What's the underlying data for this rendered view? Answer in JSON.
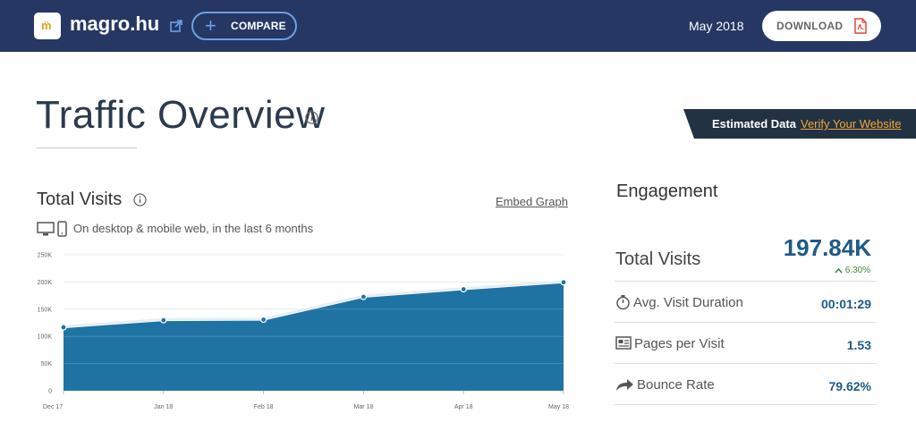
{
  "header": {
    "logo_text": "m̈",
    "site": "magro.hu",
    "compare_label": "COMPARE",
    "date": "May 2018",
    "download_label": "DOWNLOAD"
  },
  "overview": {
    "title": "Traffic Overview",
    "estimated_label": "Estimated Data",
    "verify_label": "Verify Your Website"
  },
  "visits": {
    "title": "Total Visits",
    "embed_label": "Embed Graph",
    "devices_text": "On desktop & mobile web, in the last 6 months"
  },
  "chart_data": {
    "type": "area",
    "x": [
      "Dec 17",
      "Jan 18",
      "Feb 18",
      "Mar 18",
      "Apr 18",
      "May 18"
    ],
    "series": [
      {
        "values": [
          115000,
          128000,
          129000,
          171000,
          185000,
          197840
        ]
      }
    ],
    "y_ticks": [
      "0",
      "50K",
      "100K",
      "150K",
      "200K",
      "250K"
    ],
    "ylim": [
      0,
      250000
    ],
    "grid": true,
    "colors": {
      "fill": "#1f73a3",
      "line": "#e6edf2",
      "point": "#1f73a3"
    }
  },
  "engagement": {
    "title": "Engagement",
    "total_label": "Total Visits",
    "total_value": "197.84K",
    "total_change": "6.30%",
    "rows": [
      {
        "icon": "stopwatch-icon",
        "label": "Avg. Visit Duration",
        "value": "00:01:29"
      },
      {
        "icon": "pages-icon",
        "label": "Pages per Visit",
        "value": "1.53"
      },
      {
        "icon": "bounce-arrow-icon",
        "label": "Bounce Rate",
        "value": "79.62%"
      }
    ]
  },
  "colors": {
    "header_bg": "#263763",
    "accent_blue": "#1e5a87",
    "verify_orange": "#f0a63c",
    "positive_green": "#3a8a3a"
  }
}
